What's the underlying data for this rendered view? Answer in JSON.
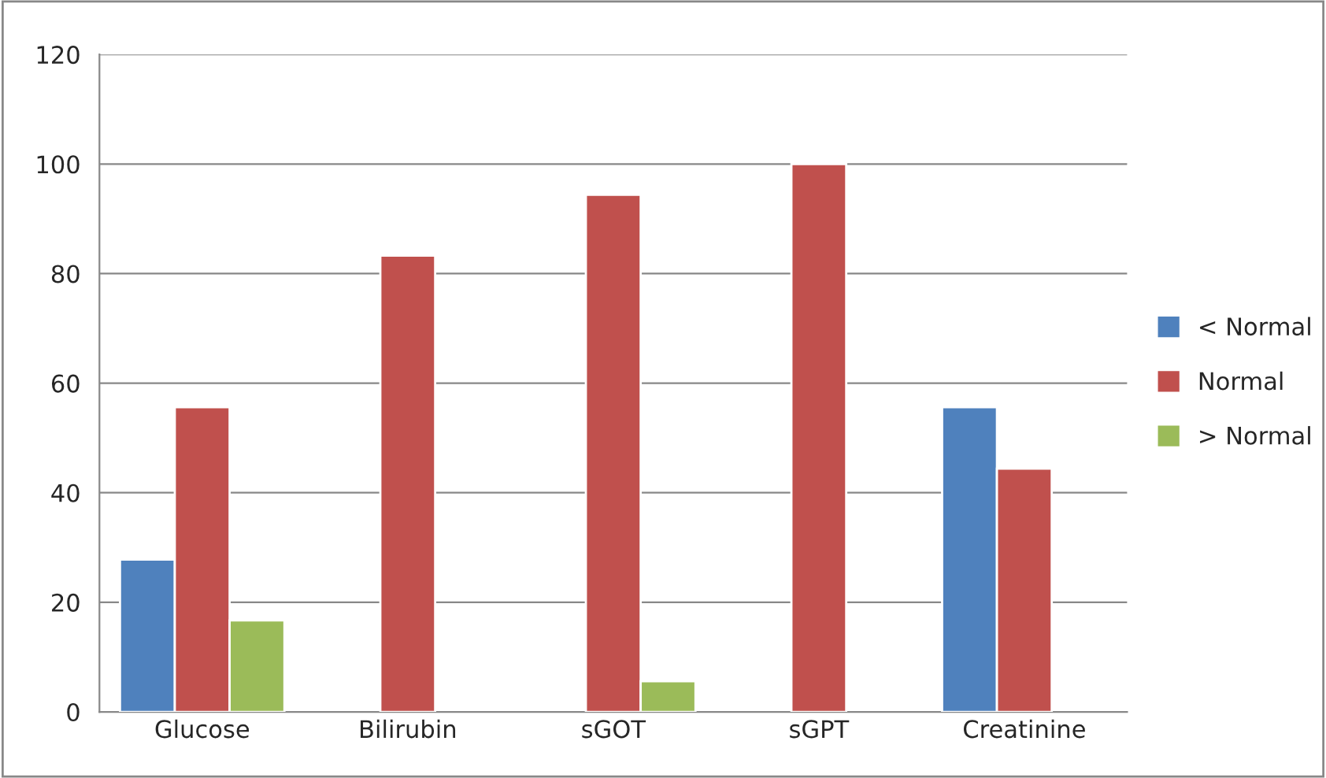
{
  "chart_data": {
    "type": "bar",
    "categories": [
      "Glucose",
      "Bilirubin",
      "sGOT",
      "sGPT",
      "Creatinine"
    ],
    "series": [
      {
        "name": "< Normal",
        "color": "#4f81bd",
        "values": [
          27.8,
          null,
          null,
          null,
          55.6
        ]
      },
      {
        "name": "Normal",
        "color": "#c0504d",
        "values": [
          55.6,
          83.3,
          94.4,
          100,
          44.4
        ]
      },
      {
        "name": "> Normal",
        "color": "#9bbb59",
        "values": [
          16.7,
          null,
          5.6,
          null,
          null
        ]
      }
    ],
    "ylim": [
      0,
      120
    ],
    "yticks": [
      0,
      20,
      40,
      60,
      80,
      100,
      120
    ],
    "grid": "y",
    "legend": "right"
  }
}
